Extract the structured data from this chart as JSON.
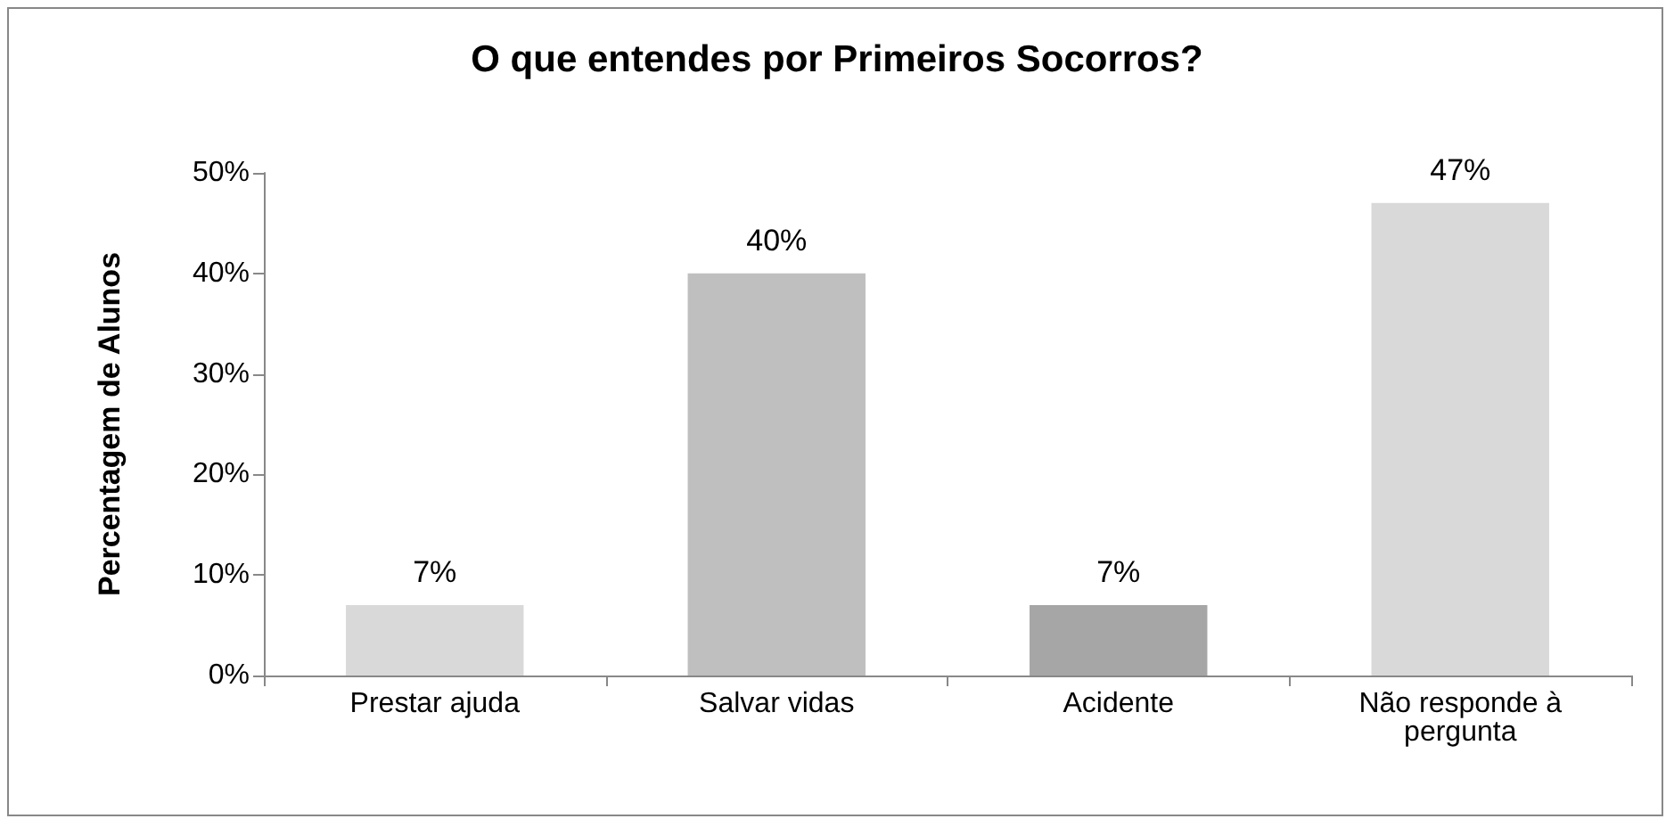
{
  "chart_data": {
    "type": "bar",
    "title": "O que entendes por Primeiros Socorros?",
    "ylabel": "Percentagem de Alunos",
    "categories": [
      "Prestar ajuda",
      "Salvar vidas",
      "Acidente",
      "Não responde à pergunta"
    ],
    "values": [
      7,
      40,
      7,
      47
    ],
    "colors": [
      "#d9d9d9",
      "#bfbfbf",
      "#a6a6a6",
      "#d9d9d9"
    ],
    "value_labels": [
      "7%",
      "40%",
      "7%",
      "47%"
    ],
    "ylim": [
      0,
      50
    ],
    "yticks": [
      {
        "value": 0,
        "label": "0%"
      },
      {
        "value": 10,
        "label": "10%"
      },
      {
        "value": 20,
        "label": "20%"
      },
      {
        "value": 30,
        "label": "30%"
      },
      {
        "value": 40,
        "label": "40%"
      },
      {
        "value": 50,
        "label": "50%"
      }
    ],
    "grid": false
  }
}
